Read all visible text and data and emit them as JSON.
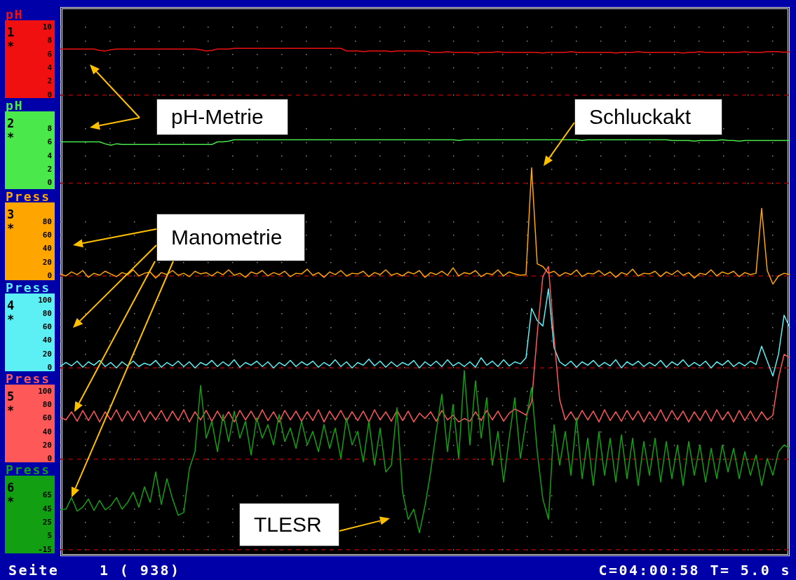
{
  "chart_data": [
    {
      "type": "line",
      "categories": [
        null,
        null,
        null,
        null,
        null,
        null,
        null,
        null,
        null,
        null,
        null,
        null,
        null,
        null,
        null,
        null,
        null,
        null,
        null,
        null,
        null,
        null,
        null,
        null,
        null,
        null,
        null,
        null,
        null,
        null,
        null,
        null,
        null,
        null,
        null,
        null,
        null,
        null,
        null,
        null,
        null,
        null,
        null,
        null,
        null,
        null,
        null,
        null,
        null,
        null,
        null,
        null,
        null,
        null,
        null,
        null,
        null,
        null,
        null,
        null,
        null,
        null,
        null,
        null,
        null,
        null,
        null,
        null,
        null,
        null,
        null,
        null,
        null,
        null,
        null,
        null,
        null,
        null,
        null,
        null,
        null,
        null,
        null,
        null,
        null,
        null,
        null,
        null,
        null,
        null,
        null,
        null,
        null,
        null,
        null,
        null,
        null,
        null,
        null,
        null,
        null,
        null,
        null,
        null,
        null,
        null,
        null,
        null,
        null,
        null,
        null,
        null,
        null,
        null,
        null,
        null,
        null,
        null,
        null,
        null,
        null,
        null,
        null,
        null,
        null,
        null,
        null,
        null,
        null,
        null,
        null
      ],
      "series": [
        {
          "name": "1",
          "color": "#f01010",
          "values": [
            6.8,
            6.8,
            6.8,
            6.8,
            6.8,
            6.8,
            6.8,
            6.6,
            6.5,
            6.7,
            6.8,
            6.8,
            6.8,
            6.8,
            6.8,
            6.8,
            6.8,
            6.8,
            6.8,
            6.8,
            6.8,
            6.8,
            6.8,
            6.8,
            6.8,
            6.7,
            6.5,
            6.6,
            6.8,
            6.8,
            6.8,
            6.9,
            6.9,
            6.9,
            6.9,
            6.9,
            6.9,
            6.9,
            6.9,
            6.9,
            6.9,
            6.9,
            6.9,
            6.9,
            6.9,
            6.9,
            6.9,
            6.9,
            6.9,
            6.9,
            6.9,
            6.5,
            6.5,
            6.5,
            6.4,
            6.5,
            6.5,
            6.5,
            6.5,
            6.4,
            6.5,
            6.5,
            6.5,
            6.5,
            6.5,
            6.5,
            6.3,
            6.3,
            6.3,
            6.4,
            6.3,
            6.3,
            6.3,
            6.3,
            6.2,
            6.3,
            6.3,
            6.3,
            6.4,
            6.3,
            6.3,
            6.3,
            6.3,
            6.3,
            6.3,
            6.3,
            6.2,
            6.3,
            6.3,
            6.3,
            6.3,
            6.4,
            6.3,
            6.3,
            6.3,
            6.3,
            6.3,
            6.3,
            6.3,
            6.2,
            6.3,
            6.3,
            6.3,
            6.4,
            6.3,
            6.3,
            6.3,
            6.3,
            6.3,
            6.3,
            6.3,
            6.2,
            6.3,
            6.3,
            6.4,
            6.3,
            6.3,
            6.3,
            6.3,
            6.3,
            6.3,
            6.3,
            6.4,
            6.3,
            6.3,
            6.3,
            6.4,
            6.4,
            6.4,
            6.3,
            6.4
          ]
        }
      ],
      "ylim": [
        -68,
        13
      ],
      "yticks": [
        0,
        2,
        4,
        6,
        8,
        10
      ],
      "ylabel": "pH",
      "ref_lines": [
        {
          "axis": "y",
          "value": 0,
          "color": "#a00000",
          "line_style": "dashed"
        }
      ],
      "annotations": [
        "*"
      ],
      "grid": "y",
      "legend": "left"
    },
    {
      "type": "line",
      "categories": [
        null,
        null,
        null,
        null,
        null,
        null,
        null,
        null,
        null,
        null,
        null,
        null,
        null,
        null,
        null,
        null,
        null,
        null,
        null,
        null,
        null,
        null,
        null,
        null,
        null,
        null,
        null,
        null,
        null,
        null,
        null,
        null,
        null,
        null,
        null,
        null,
        null,
        null,
        null,
        null,
        null,
        null,
        null,
        null,
        null,
        null,
        null,
        null,
        null,
        null,
        null,
        null,
        null,
        null,
        null,
        null,
        null,
        null,
        null,
        null,
        null,
        null,
        null,
        null,
        null,
        null,
        null,
        null,
        null,
        null,
        null,
        null,
        null,
        null,
        null,
        null,
        null,
        null,
        null,
        null,
        null,
        null,
        null,
        null,
        null,
        null,
        null,
        null,
        null,
        null,
        null,
        null,
        null,
        null,
        null,
        null,
        null,
        null,
        null,
        null,
        null,
        null,
        null,
        null,
        null,
        null,
        null,
        null,
        null,
        null,
        null,
        null,
        null,
        null,
        null,
        null,
        null,
        null,
        null,
        null,
        null,
        null,
        null,
        null,
        null,
        null,
        null,
        null,
        null,
        null,
        null
      ],
      "series": [
        {
          "name": "2",
          "color": "#4ae84a",
          "values": [
            6.1,
            6.1,
            6.1,
            6.1,
            6.1,
            6.1,
            6.1,
            6.1,
            5.8,
            5.6,
            5.8,
            5.7,
            5.7,
            5.7,
            5.7,
            5.7,
            5.7,
            5.7,
            5.7,
            5.7,
            5.7,
            5.7,
            5.7,
            5.7,
            5.7,
            5.7,
            5.7,
            5.7,
            6.1,
            6.1,
            6.2,
            6.4,
            6.4,
            6.4,
            6.4,
            6.4,
            6.4,
            6.4,
            6.4,
            6.4,
            6.4,
            6.4,
            6.4,
            6.4,
            6.4,
            6.4,
            6.4,
            6.4,
            6.4,
            6.4,
            6.4,
            6.4,
            6.4,
            6.4,
            6.4,
            6.4,
            6.4,
            6.4,
            6.4,
            6.4,
            6.4,
            6.4,
            6.4,
            6.4,
            6.4,
            6.4,
            6.4,
            6.4,
            6.4,
            6.4,
            6.4,
            6.3,
            6.4,
            6.4,
            6.4,
            6.4,
            6.4,
            6.4,
            6.4,
            6.4,
            6.4,
            6.4,
            6.4,
            6.4,
            6.4,
            6.4,
            6.4,
            6.4,
            6.4,
            6.4,
            6.4,
            6.4,
            6.4,
            6.3,
            6.4,
            6.4,
            6.4,
            6.4,
            6.4,
            6.4,
            6.4,
            6.4,
            6.4,
            6.4,
            6.4,
            6.4,
            6.4,
            6.4,
            6.4,
            6.3,
            6.3,
            6.3,
            6.3,
            6.2,
            6.3,
            6.3,
            6.3,
            6.3,
            6.4,
            6.3,
            6.3,
            6.2,
            6.3,
            6.3,
            6.3,
            6.3,
            6.3,
            6.3,
            6.3,
            6.3,
            6.3
          ]
        }
      ],
      "ylim": [
        -55,
        26
      ],
      "yticks": [
        0,
        2,
        4,
        6,
        8
      ],
      "ylabel": "pH",
      "ref_lines": [
        {
          "axis": "y",
          "value": 0,
          "color": "#a00000",
          "line_style": "dashed"
        }
      ],
      "annotations": [
        "*",
        "pH-Metrie"
      ],
      "grid": "y",
      "legend": "left"
    },
    {
      "type": "line",
      "categories": [
        null,
        null,
        null,
        null,
        null,
        null,
        null,
        null,
        null,
        null,
        null,
        null,
        null,
        null,
        null,
        null,
        null,
        null,
        null,
        null,
        null,
        null,
        null,
        null,
        null,
        null,
        null,
        null,
        null,
        null,
        null,
        null,
        null,
        null,
        null,
        null,
        null,
        null,
        null,
        null,
        null,
        null,
        null,
        null,
        null,
        null,
        null,
        null,
        null,
        null,
        null,
        null,
        null,
        null,
        null,
        null,
        null,
        null,
        null,
        null,
        null,
        null,
        null,
        null,
        null,
        null,
        null,
        null,
        null,
        null,
        null,
        null,
        null,
        null,
        null,
        null,
        null,
        null,
        null,
        null,
        null,
        null,
        null,
        null,
        null,
        null,
        null,
        null,
        null,
        null,
        null,
        null,
        null,
        null,
        null,
        null,
        null,
        null,
        null,
        null,
        null,
        null,
        null,
        null,
        null,
        null,
        null,
        null,
        null,
        null,
        null,
        null,
        null,
        null,
        null,
        null,
        null,
        null,
        null,
        null,
        null,
        null,
        null,
        null,
        null,
        null,
        null,
        null,
        null,
        null,
        null
      ],
      "series": [
        {
          "name": "3",
          "color": "#ffa500",
          "values": [
            3,
            0,
            6,
            2,
            8,
            -2,
            4,
            1,
            7,
            3,
            -1,
            5,
            2,
            9,
            0,
            4,
            6,
            -3,
            5,
            2,
            8,
            1,
            4,
            -1,
            7,
            3,
            5,
            0,
            6,
            2,
            9,
            1,
            4,
            -2,
            6,
            3,
            8,
            0,
            5,
            2,
            7,
            -1,
            4,
            3,
            10,
            1,
            5,
            -2,
            6,
            2,
            8,
            0,
            4,
            3,
            7,
            -1,
            5,
            2,
            9,
            1,
            4,
            0,
            6,
            3,
            8,
            -2,
            5,
            2,
            7,
            1,
            12,
            0,
            5,
            3,
            8,
            -1,
            4,
            2,
            9,
            0,
            6,
            3,
            1,
            2,
            160,
            18,
            14,
            4,
            7,
            0,
            5,
            2,
            9,
            -1,
            4,
            3,
            8,
            1,
            6,
            -2,
            5,
            2,
            10,
            0,
            4,
            3,
            7,
            -1,
            6,
            2,
            8,
            1,
            5,
            -3,
            4,
            2,
            9,
            0,
            6,
            3,
            7,
            -1,
            5,
            2,
            4,
            100,
            8,
            -12,
            0,
            4,
            2
          ]
        }
      ],
      "ylim": [
        -414,
        398
      ],
      "yticks": [
        0,
        20,
        40,
        60,
        80
      ],
      "ylabel": "Press",
      "ref_lines": [
        {
          "axis": "y",
          "value": 0,
          "color": "#a00000",
          "line_style": "dashed"
        }
      ],
      "annotations": [
        "*",
        "Schluckakt",
        "Manometrie"
      ],
      "grid": "y",
      "legend": "left"
    },
    {
      "type": "line",
      "categories": [
        null,
        null,
        null,
        null,
        null,
        null,
        null,
        null,
        null,
        null,
        null,
        null,
        null,
        null,
        null,
        null,
        null,
        null,
        null,
        null,
        null,
        null,
        null,
        null,
        null,
        null,
        null,
        null,
        null,
        null,
        null,
        null,
        null,
        null,
        null,
        null,
        null,
        null,
        null,
        null,
        null,
        null,
        null,
        null,
        null,
        null,
        null,
        null,
        null,
        null,
        null,
        null,
        null,
        null,
        null,
        null,
        null,
        null,
        null,
        null,
        null,
        null,
        null,
        null,
        null,
        null,
        null,
        null,
        null,
        null,
        null,
        null,
        null,
        null,
        null,
        null,
        null,
        null,
        null,
        null,
        null,
        null,
        null,
        null,
        null,
        null,
        null,
        null,
        null,
        null,
        null,
        null,
        null,
        null,
        null,
        null,
        null,
        null,
        null,
        null,
        null,
        null,
        null,
        null,
        null,
        null,
        null,
        null,
        null,
        null,
        null,
        null,
        null,
        null,
        null,
        null,
        null,
        null,
        null,
        null,
        null,
        null,
        null,
        null,
        null,
        null,
        null,
        null,
        null,
        null,
        null
      ],
      "series": [
        {
          "name": "4",
          "color": "#5cf0f5",
          "values": [
            2,
            8,
            3,
            10,
            1,
            9,
            4,
            11,
            2,
            8,
            0,
            9,
            3,
            10,
            2,
            7,
            4,
            11,
            1,
            8,
            3,
            10,
            2,
            9,
            0,
            8,
            4,
            11,
            2,
            9,
            3,
            12,
            1,
            8,
            4,
            10,
            2,
            9,
            0,
            8,
            3,
            11,
            2,
            9,
            4,
            10,
            1,
            8,
            3,
            12,
            2,
            9,
            0,
            8,
            4,
            13,
            3,
            10,
            1,
            9,
            2,
            8,
            4,
            11,
            0,
            9,
            3,
            10,
            2,
            12,
            3,
            8,
            2,
            9,
            1,
            15,
            4,
            10,
            2,
            12,
            3,
            9,
            6,
            15,
            88,
            70,
            62,
            117,
            30,
            9,
            3,
            10,
            1,
            9,
            4,
            11,
            2,
            8,
            3,
            12,
            0,
            9,
            4,
            10,
            2,
            8,
            3,
            11,
            1,
            9,
            4,
            12,
            2,
            8,
            3,
            10,
            0,
            9,
            4,
            11,
            2,
            8,
            3,
            10,
            5,
            32,
            10,
            -12,
            20,
            78,
            60
          ]
        }
      ],
      "ylim": [
        -278,
        534
      ],
      "yticks": [
        0,
        20,
        40,
        60,
        80,
        100
      ],
      "ylabel": "Press",
      "ref_lines": [
        {
          "axis": "y",
          "value": 0,
          "color": "#a00000",
          "line_style": "dashed"
        }
      ],
      "annotations": [
        "*"
      ],
      "grid": "y",
      "legend": "left"
    },
    {
      "type": "line",
      "categories": [
        null,
        null,
        null,
        null,
        null,
        null,
        null,
        null,
        null,
        null,
        null,
        null,
        null,
        null,
        null,
        null,
        null,
        null,
        null,
        null,
        null,
        null,
        null,
        null,
        null,
        null,
        null,
        null,
        null,
        null,
        null,
        null,
        null,
        null,
        null,
        null,
        null,
        null,
        null,
        null,
        null,
        null,
        null,
        null,
        null,
        null,
        null,
        null,
        null,
        null,
        null,
        null,
        null,
        null,
        null,
        null,
        null,
        null,
        null,
        null,
        null,
        null,
        null,
        null,
        null,
        null,
        null,
        null,
        null,
        null,
        null,
        null,
        null,
        null,
        null,
        null,
        null,
        null,
        null,
        null,
        null,
        null,
        null,
        null,
        null,
        null,
        null,
        null,
        null,
        null,
        null,
        null,
        null,
        null,
        null,
        null,
        null,
        null,
        null,
        null,
        null,
        null,
        null,
        null,
        null,
        null,
        null,
        null,
        null,
        null,
        null,
        null,
        null,
        null,
        null,
        null,
        null,
        null,
        null,
        null,
        null,
        null,
        null,
        null,
        null,
        null,
        null,
        null,
        null,
        null,
        null
      ],
      "series": [
        {
          "name": "5",
          "color": "#ff5858",
          "values": [
            62,
            58,
            70,
            56,
            72,
            57,
            71,
            55,
            70,
            58,
            73,
            56,
            71,
            57,
            72,
            55,
            70,
            58,
            72,
            56,
            71,
            57,
            73,
            55,
            70,
            58,
            72,
            56,
            71,
            57,
            70,
            55,
            72,
            58,
            71,
            56,
            73,
            57,
            70,
            55,
            72,
            58,
            71,
            56,
            70,
            57,
            73,
            55,
            71,
            58,
            72,
            56,
            70,
            57,
            71,
            55,
            73,
            58,
            70,
            56,
            72,
            57,
            71,
            55,
            68,
            60,
            70,
            56,
            72,
            58,
            65,
            55,
            60,
            56,
            70,
            57,
            72,
            58,
            71,
            56,
            68,
            74,
            70,
            65,
            85,
            185,
            270,
            285,
            180,
            88,
            58,
            70,
            56,
            72,
            58,
            71,
            55,
            73,
            57,
            70,
            56,
            72,
            58,
            71,
            55,
            70,
            57,
            73,
            56,
            72,
            58,
            71,
            55,
            70,
            57,
            72,
            56,
            73,
            58,
            70,
            55,
            72,
            57,
            71,
            56,
            70,
            58,
            65,
            120,
            155,
            150
          ]
        }
      ],
      "ylim": [
        -143,
        669
      ],
      "yticks": [
        0,
        20,
        40,
        60,
        80,
        100
      ],
      "ylabel": "Press",
      "ref_lines": [
        {
          "axis": "y",
          "value": 0,
          "color": "#a00000",
          "line_style": "dashed"
        }
      ],
      "annotations": [
        "*"
      ],
      "grid": "y",
      "legend": "left"
    },
    {
      "type": "line",
      "categories": [
        null,
        null,
        null,
        null,
        null,
        null,
        null,
        null,
        null,
        null,
        null,
        null,
        null,
        null,
        null,
        null,
        null,
        null,
        null,
        null,
        null,
        null,
        null,
        null,
        null,
        null,
        null,
        null,
        null,
        null,
        null,
        null,
        null,
        null,
        null,
        null,
        null,
        null,
        null,
        null,
        null,
        null,
        null,
        null,
        null,
        null,
        null,
        null,
        null,
        null,
        null,
        null,
        null,
        null,
        null,
        null,
        null,
        null,
        null,
        null,
        null,
        null,
        null,
        null,
        null,
        null,
        null,
        null,
        null,
        null,
        null,
        null,
        null,
        null,
        null,
        null,
        null,
        null,
        null,
        null,
        null,
        null,
        null,
        null,
        null,
        null,
        null,
        null,
        null,
        null,
        null,
        null,
        null,
        null,
        null,
        null,
        null,
        null,
        null,
        null,
        null,
        null,
        null,
        null,
        null,
        null,
        null,
        null,
        null,
        null,
        null,
        null,
        null,
        null,
        null,
        null,
        null,
        null,
        null,
        null,
        null,
        null,
        null,
        null,
        null,
        null,
        null,
        null,
        null,
        null,
        null
      ],
      "series": [
        {
          "name": "6",
          "color": "#12a012",
          "values": [
            44,
            45,
            62,
            42,
            48,
            60,
            43,
            58,
            44,
            50,
            62,
            45,
            55,
            70,
            48,
            78,
            55,
            100,
            52,
            90,
            60,
            36,
            40,
            105,
            130,
            228,
            150,
            175,
            130,
            185,
            145,
            190,
            150,
            175,
            125,
            180,
            150,
            170,
            140,
            185,
            145,
            165,
            135,
            175,
            140,
            160,
            130,
            170,
            135,
            165,
            120,
            180,
            140,
            160,
            115,
            175,
            110,
            165,
            100,
            110,
            195,
            70,
            30,
            45,
            10,
            50,
            100,
            160,
            215,
            130,
            200,
            120,
            250,
            140,
            235,
            150,
            210,
            110,
            160,
            85,
            150,
            210,
            120,
            175,
            225,
            130,
            60,
            30,
            170,
            110,
            160,
            95,
            180,
            90,
            150,
            80,
            160,
            95,
            150,
            85,
            155,
            90,
            150,
            80,
            145,
            95,
            150,
            85,
            145,
            90,
            140,
            80,
            145,
            95,
            140,
            85,
            135,
            90,
            140,
            100,
            135,
            90,
            130,
            95,
            125,
            80,
            120,
            95,
            130,
            140,
            135
          ]
        }
      ],
      "ylim": [
        -24,
        788
      ],
      "yticks": [
        -15,
        5,
        25,
        45,
        65
      ],
      "ylabel": "Press",
      "ref_lines": [
        {
          "axis": "y",
          "value": -15,
          "color": "#a00000",
          "line_style": "dashed"
        }
      ],
      "annotations": [
        "*",
        "TLESR",
        "Seite    1 ( 938)",
        "C=04:00:58 T= 5.0 s"
      ],
      "grid": "y",
      "legend": "left"
    }
  ]
}
